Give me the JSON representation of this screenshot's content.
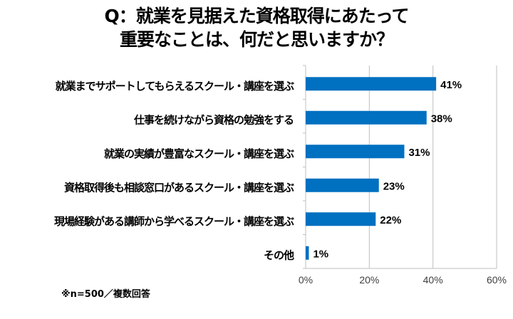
{
  "chart_data": {
    "type": "bar",
    "orientation": "horizontal",
    "title_lines": [
      "Q：就業を見据えた資格取得にあたって",
      "重要なことは、何だと思いますか？"
    ],
    "categories": [
      "就業までサポートしてもらえるスクール・講座を選ぶ",
      "仕事を続けながら資格の勉強をする",
      "就業の実績が豊富なスクール・講座を選ぶ",
      "資格取得後も相談窓口があるスクール・講座を選ぶ",
      "現場経験がある講師から学べるスクール・講座を選ぶ",
      "その他"
    ],
    "values": [
      41,
      38,
      31,
      23,
      22,
      1
    ],
    "data_labels": [
      "41%",
      "38%",
      "31%",
      "23%",
      "22%",
      "1%"
    ],
    "xlim": [
      0,
      60
    ],
    "xticks": [
      0,
      20,
      40,
      60
    ],
    "xtick_labels": [
      "0%",
      "20%",
      "40%",
      "60%"
    ],
    "grid": "vertical",
    "legend": "none",
    "bar_color": "#0070C0",
    "note": "※n=500／複数回答"
  }
}
